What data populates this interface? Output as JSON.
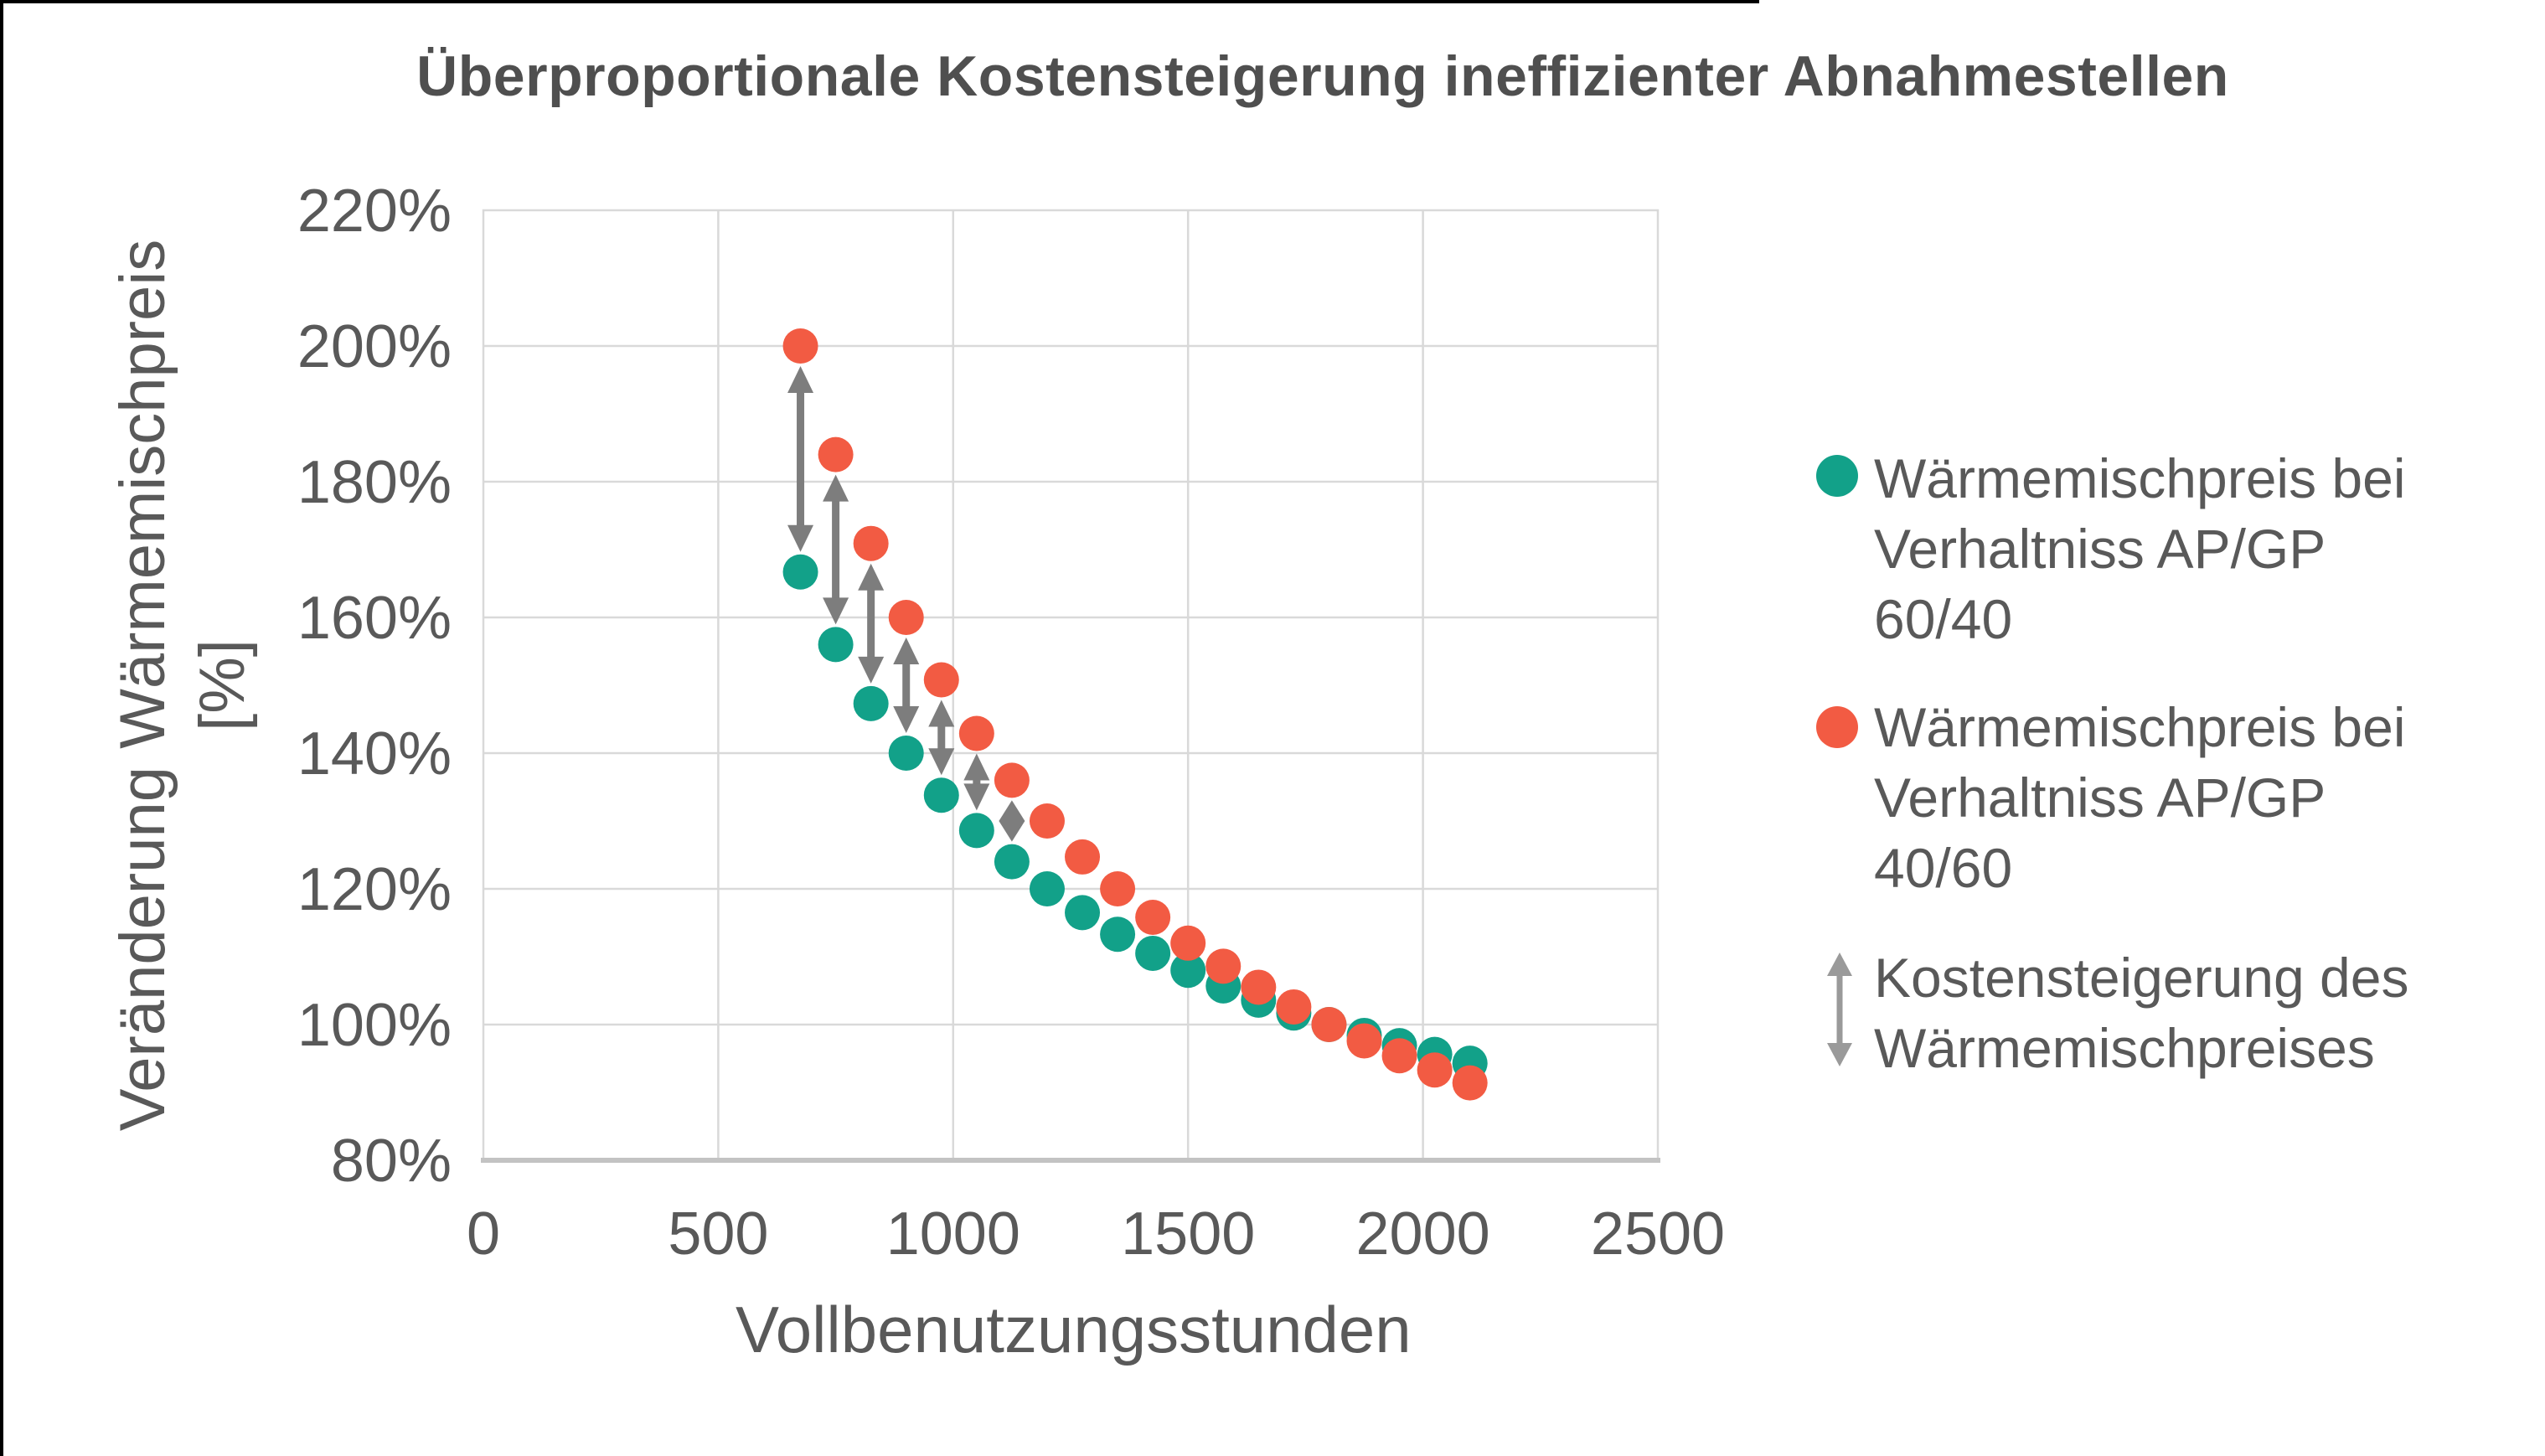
{
  "title": {
    "text": "Überproportionale Kostensteigerung ineffizienter Abnahmestellen",
    "color": "#4f4f4f"
  },
  "chart_data": {
    "type": "scatter",
    "title": "Überproportionale Kostensteigerung ineffizienter Abnahmestellen",
    "xlabel": "Vollbenutzungsstunden",
    "ylabel_line1": "Veränderung Wärmemischpreis",
    "ylabel_line2": "[%]",
    "xlim": [
      0,
      2500
    ],
    "ylim": [
      80,
      220
    ],
    "xticks": [
      0,
      500,
      1000,
      1500,
      2000,
      2500
    ],
    "yticks": [
      80,
      100,
      120,
      140,
      160,
      180,
      200,
      220
    ],
    "y_tick_suffix": "%",
    "grid": true,
    "legend_position": "right",
    "x": [
      675,
      750,
      825,
      900,
      975,
      1050,
      1125,
      1200,
      1275,
      1350,
      1425,
      1500,
      1575,
      1650,
      1725,
      1800,
      1875,
      1950,
      2025,
      2100
    ],
    "series": [
      {
        "name": "Wärmemischpreis bei Verhaltniss AP/GP 60/40",
        "color": "#12A189",
        "values": [
          166.7,
          156.0,
          147.3,
          140.0,
          133.8,
          128.6,
          124.0,
          120.0,
          116.5,
          113.3,
          110.5,
          108.0,
          105.7,
          103.6,
          101.7,
          100.0,
          98.4,
          96.9,
          95.6,
          94.3
        ]
      },
      {
        "name": "Wärmemischpreis bei Verhaltniss AP/GP 40/60",
        "color": "#F25B43",
        "values": [
          200.0,
          184.0,
          170.9,
          160.0,
          150.8,
          142.9,
          136.0,
          130.0,
          124.7,
          120.0,
          115.8,
          112.0,
          108.6,
          105.5,
          102.6,
          100.0,
          97.6,
          95.4,
          93.3,
          91.4
        ]
      }
    ],
    "arrows": {
      "label": "Kostensteigerung des Wärmemischpreises",
      "color": "#7D7D7D",
      "from_series": 1,
      "to_series": 0,
      "x_indices": [
        0,
        1,
        2,
        3,
        4,
        5,
        6
      ]
    },
    "colors": {
      "gridline": "#D9D9D9",
      "axis_line": "#C3C3C3",
      "text": "#595959"
    }
  },
  "legend": {
    "entries": [
      {
        "marker": "dot",
        "color": "#12A189",
        "label": "Wärmemischpreis bei Verhaltniss AP/GP 60/40"
      },
      {
        "marker": "dot",
        "color": "#F25B43",
        "label": "Wärmemischpreis bei Verhaltniss AP/GP 40/60"
      },
      {
        "marker": "double-arrow",
        "color": "#9A9A9A",
        "label": "Kostensteigerung des Wärmemischpreises"
      }
    ]
  }
}
